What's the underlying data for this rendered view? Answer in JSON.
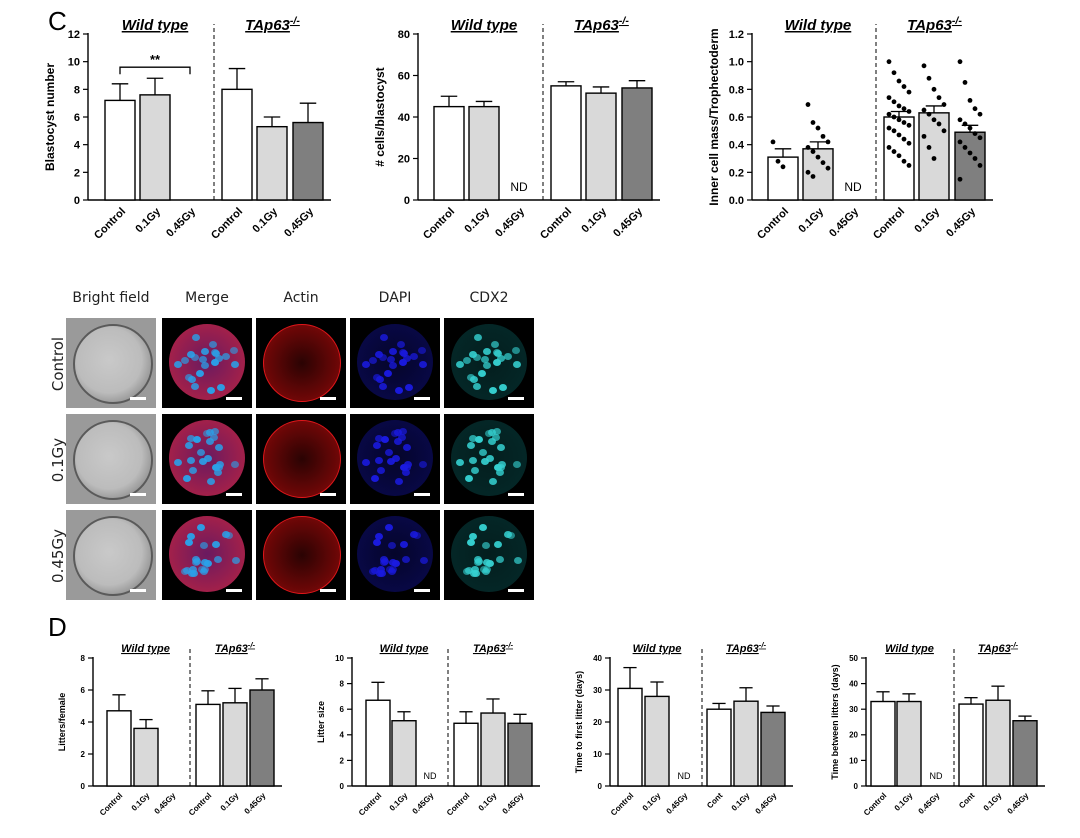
{
  "panels": {
    "c_label": "C",
    "d_label": "D"
  },
  "groups": {
    "wild_type": "Wild type",
    "tap63_base": "TAp63",
    "tap63_sup": "-/-"
  },
  "nd_label": "ND",
  "sig_label": "**",
  "microscopy": {
    "columns": [
      "Bright field",
      "Merge",
      "Actin",
      "DAPI",
      "CDX2"
    ],
    "rows": [
      "Control",
      "0.1Gy",
      "0.45Gy"
    ]
  },
  "colors": {
    "control": "#ffffff",
    "dose_01": "#d9d9d9",
    "dose_045": "#7f7f7f",
    "actin": "#e0161a",
    "dapi": "#1a1ae0",
    "cdx2": "#35d0d0",
    "merge_nuclei": "#2aa0e8"
  },
  "chart_data": [
    {
      "id": "c1",
      "type": "bar",
      "ylabel": "Blastocyst number",
      "ylim": [
        0,
        12
      ],
      "yticks": [
        "0",
        "2",
        "4",
        "6",
        "8",
        "10",
        "12"
      ],
      "categories": [
        "Control",
        "0.1Gy",
        "0.45Gy",
        "Control",
        "0.1Gy",
        "0.45Gy"
      ],
      "values": [
        7.2,
        7.6,
        null,
        8.0,
        5.3,
        5.6
      ],
      "errors": [
        1.2,
        1.2,
        null,
        1.5,
        0.7,
        1.4
      ],
      "annotation": {
        "from": 0,
        "to": 2,
        "y": 9.6,
        "label": "**"
      }
    },
    {
      "id": "c2",
      "type": "bar",
      "ylabel": "# cells/blastocyst",
      "ylim": [
        0,
        80
      ],
      "yticks": [
        "0",
        "20",
        "40",
        "60",
        "80"
      ],
      "categories": [
        "Control",
        "0.1Gy",
        "0.45Gy",
        "Control",
        "0.1Gy",
        "0.45Gy"
      ],
      "values": [
        45,
        45,
        null,
        55,
        51.5,
        54
      ],
      "errors": [
        5,
        2.5,
        null,
        2,
        3,
        3.5
      ],
      "nd_index": 2
    },
    {
      "id": "c3",
      "type": "bar+scatter",
      "ylabel": "Inner cell mass/Trophectoderm",
      "ylim": [
        0,
        1.2
      ],
      "yticks": [
        "0.0",
        "0.2",
        "0.4",
        "0.6",
        "0.8",
        "1.0",
        "1.2"
      ],
      "categories": [
        "Control",
        "0.1Gy",
        "0.45Gy",
        "Control",
        "0.1Gy",
        "0.45Gy"
      ],
      "values": [
        0.31,
        0.37,
        null,
        0.6,
        0.63,
        0.49
      ],
      "errors": [
        0.06,
        0.05,
        null,
        0.04,
        0.05,
        0.05
      ],
      "nd_index": 2,
      "points": [
        [
          0.42,
          0.28,
          0.24
        ],
        [
          0.69,
          0.56,
          0.52,
          0.46,
          0.42,
          0.38,
          0.35,
          0.31,
          0.27,
          0.23,
          0.2,
          0.17
        ],
        [],
        [
          1.0,
          0.92,
          0.86,
          0.82,
          0.78,
          0.74,
          0.71,
          0.68,
          0.66,
          0.64,
          0.62,
          0.6,
          0.58,
          0.56,
          0.54,
          0.52,
          0.5,
          0.47,
          0.44,
          0.41,
          0.38,
          0.35,
          0.32,
          0.28,
          0.25
        ],
        [
          0.97,
          0.88,
          0.8,
          0.74,
          0.69,
          0.65,
          0.62,
          0.58,
          0.55,
          0.5,
          0.46,
          0.38,
          0.3
        ],
        [
          1.0,
          0.85,
          0.72,
          0.66,
          0.62,
          0.58,
          0.55,
          0.52,
          0.48,
          0.45,
          0.42,
          0.38,
          0.34,
          0.3,
          0.25,
          0.15
        ]
      ]
    },
    {
      "id": "d1",
      "type": "bar",
      "ylabel": "Litters/female",
      "ylim": [
        0,
        8
      ],
      "yticks": [
        "0",
        "2",
        "4",
        "6",
        "8"
      ],
      "categories": [
        "Control",
        "0.1Gy",
        "0.45Gy",
        "Control",
        "0.1Gy",
        "0.45Gy"
      ],
      "values": [
        4.7,
        3.6,
        null,
        5.1,
        5.2,
        6.0
      ],
      "errors": [
        1.0,
        0.55,
        null,
        0.85,
        0.9,
        0.7
      ]
    },
    {
      "id": "d2",
      "type": "bar",
      "ylabel": "Litter size",
      "ylim": [
        0,
        10
      ],
      "yticks": [
        "0",
        "2",
        "4",
        "6",
        "8",
        "10"
      ],
      "categories": [
        "Control",
        "0.1Gy",
        "0.45Gy",
        "Control",
        "0.1Gy",
        "0.45Gy"
      ],
      "values": [
        6.7,
        5.1,
        null,
        4.9,
        5.7,
        4.9
      ],
      "errors": [
        1.4,
        0.7,
        null,
        0.9,
        1.1,
        0.7
      ],
      "nd_index": 2
    },
    {
      "id": "d3",
      "type": "bar",
      "ylabel": "Time to first litter (days)",
      "ylim": [
        0,
        40
      ],
      "yticks": [
        "0",
        "10",
        "20",
        "30",
        "40"
      ],
      "categories": [
        "Control",
        "0.1Gy",
        "0.45Gy",
        "Cont",
        "0.1Gy",
        "0.45Gy"
      ],
      "values": [
        30.5,
        28,
        null,
        24,
        26.5,
        23
      ],
      "errors": [
        6.5,
        4.5,
        null,
        1.8,
        4.2,
        2
      ],
      "nd_index": 2
    },
    {
      "id": "d4",
      "type": "bar",
      "ylabel": "Time between litters (days)",
      "ylim": [
        0,
        50
      ],
      "yticks": [
        "0",
        "10",
        "20",
        "30",
        "40",
        "50"
      ],
      "categories": [
        "Control",
        "0.1Gy",
        "0.45Gy",
        "Cont",
        "0.1Gy",
        "0.45Gy"
      ],
      "values": [
        33,
        33,
        null,
        32,
        33.5,
        25.5
      ],
      "errors": [
        3.8,
        3,
        null,
        2.5,
        5.5,
        1.8
      ],
      "nd_index": 2
    }
  ]
}
